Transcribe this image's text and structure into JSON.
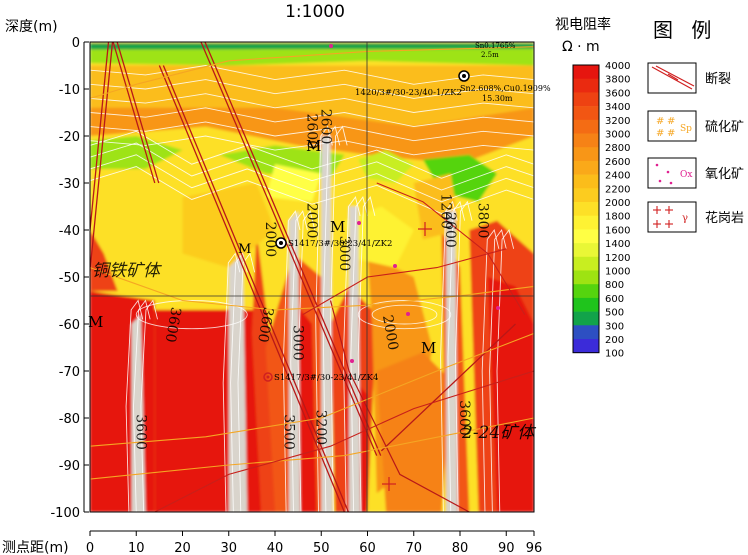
{
  "chart_data": {
    "type": "heatmap",
    "title": "1:1000",
    "ylabel": "深度(m)",
    "xlabel": "测点距(m)",
    "xlim": [
      0,
      96
    ],
    "ylim": [
      -100,
      0
    ],
    "x_ticks": [
      0,
      10,
      20,
      30,
      40,
      50,
      60,
      70,
      80,
      90,
      96
    ],
    "y_ticks": [
      0,
      -10,
      -20,
      -30,
      -40,
      -50,
      -60,
      -70,
      -80,
      -90,
      -100
    ],
    "colorbar": {
      "title": "视电阻率",
      "unit": "Ω · m",
      "levels": [
        4000,
        3800,
        3600,
        3400,
        3200,
        3000,
        2800,
        2600,
        2400,
        2200,
        2000,
        1800,
        1600,
        1400,
        1200,
        1000,
        800,
        600,
        500,
        300,
        200,
        100
      ],
      "colors": [
        "#e6150f",
        "#ea2a10",
        "#ee4212",
        "#f25613",
        "#f46c14",
        "#f68216",
        "#f89617",
        "#faa919",
        "#fbbd1a",
        "#fccc1f",
        "#fde027",
        "#fef233",
        "#ffff44",
        "#e9f736",
        "#c8ee20",
        "#9ee312",
        "#55d40e",
        "#1fc41c",
        "#12a34a",
        "#2d4fc2",
        "#3b2bd9",
        "#5a22ea"
      ]
    },
    "contour_labels": [
      "2600",
      "2600",
      "2000",
      "2000",
      "3000",
      "3600",
      "3600",
      "3000",
      "3200",
      "2600",
      "1200",
      "2000",
      "3600",
      "3500",
      "3600",
      "3800"
    ],
    "annotations": {
      "M_labels": [
        "M",
        "M",
        "M",
        "M",
        "M"
      ],
      "ore_text_left": "铜铁矿体",
      "ore_text_right": "2-24矿体",
      "drill_holes": [
        "1420/3#/30-23/40-1/ZK2",
        "S1417/3#/30-23/41/ZK2",
        "S1417/3#/30-23/41/ZK4"
      ],
      "assay_note": [
        "Sn2.608%,Cu0.1909%",
        "15.30m"
      ],
      "top_note": [
        "Sn0.1765%",
        "2.5m"
      ]
    }
  },
  "legend": {
    "title": "图 例",
    "items": [
      {
        "label": "断裂",
        "icon": "fault-icon"
      },
      {
        "label": "硫化矿",
        "icon": "sulfide-ore-icon",
        "symbol": "Sp"
      },
      {
        "label": "氧化矿",
        "icon": "oxide-ore-icon",
        "symbol": "Ox"
      },
      {
        "label": "花岗岩",
        "icon": "granite-icon",
        "symbol": "γ"
      }
    ]
  }
}
